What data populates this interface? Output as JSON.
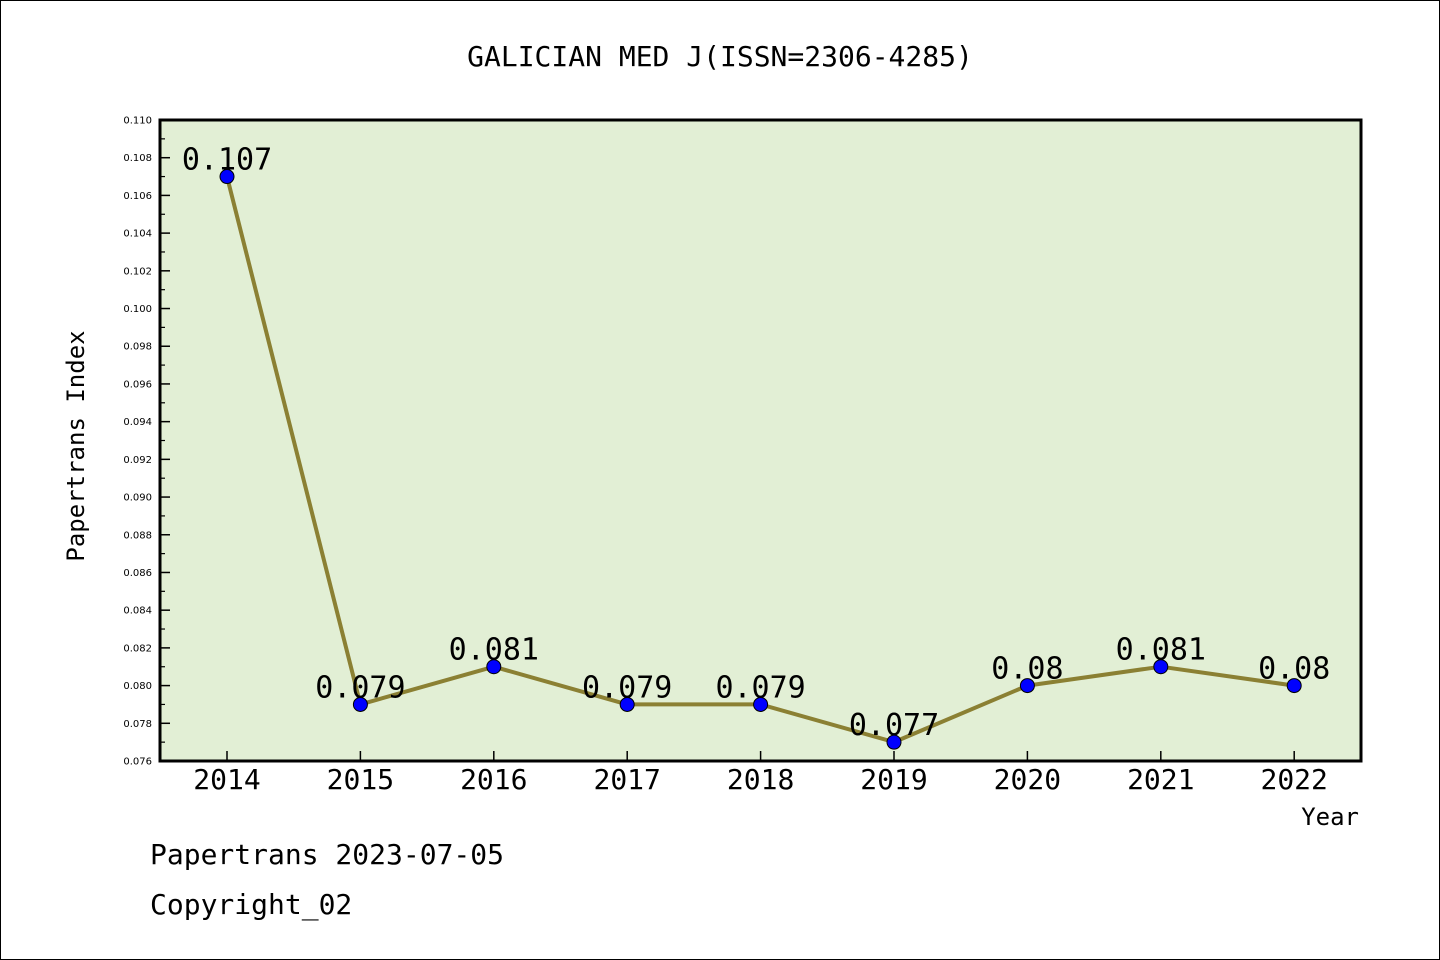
{
  "chart_data": {
    "type": "line",
    "title": "GALICIAN MED J(ISSN=2306-4285)",
    "xlabel": "Year",
    "ylabel": "Papertrans Index",
    "categories": [
      "2014",
      "2015",
      "2016",
      "2017",
      "2018",
      "2019",
      "2020",
      "2021",
      "2022"
    ],
    "series": [
      {
        "values": [
          0.107,
          0.079,
          0.081,
          0.079,
          0.079,
          0.077,
          0.08,
          0.081,
          0.08
        ],
        "data_labels": [
          "0.107",
          "0.079",
          "0.081",
          "0.079",
          "0.079",
          "0.077",
          "0.08",
          "0.081",
          "0.08"
        ]
      }
    ],
    "ylim": [
      0.076,
      0.11
    ],
    "yticks": [
      "0.076",
      "0.078",
      "0.080",
      "0.082",
      "0.084",
      "0.086",
      "0.088",
      "0.090",
      "0.092",
      "0.094",
      "0.096",
      "0.098",
      "0.100",
      "0.102",
      "0.104",
      "0.106",
      "0.108",
      "0.110"
    ],
    "grid": false,
    "legend": "none",
    "colors": {
      "plot_background": "#e2efd5",
      "line": "#8b8033",
      "marker": "#0000ff"
    }
  },
  "footer": {
    "line1": "Papertrans 2023-07-05",
    "line2": "Copyright_02"
  }
}
